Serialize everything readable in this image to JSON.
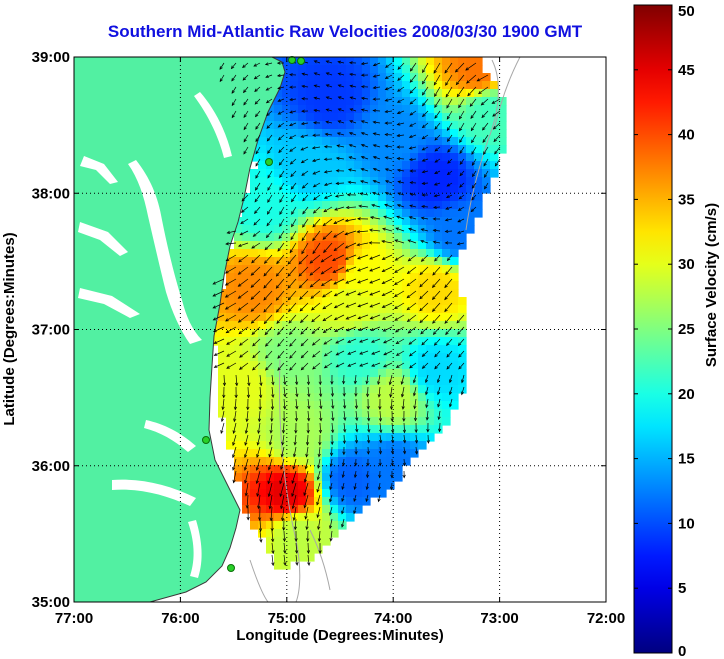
{
  "chart_data": {
    "type": "heatmap",
    "title": "Southern Mid-Atlantic Raw Velocities 2008/03/30 1900 GMT",
    "xlabel": "Longitude (Degrees:Minutes)",
    "ylabel": "Latitude (Degrees:Minutes)",
    "colorbar_label": "Surface Velocity (cm/s)",
    "xlim": [
      -77,
      -72
    ],
    "ylim": [
      35,
      39
    ],
    "x_ticks": [
      {
        "value": -77,
        "label": "77:00"
      },
      {
        "value": -76,
        "label": "76:00"
      },
      {
        "value": -75,
        "label": "75:00"
      },
      {
        "value": -74,
        "label": "74:00"
      },
      {
        "value": -73,
        "label": "73:00"
      },
      {
        "value": -72,
        "label": "72:00"
      }
    ],
    "y_ticks": [
      {
        "value": 35,
        "label": "35:00"
      },
      {
        "value": 36,
        "label": "36:00"
      },
      {
        "value": 37,
        "label": "37:00"
      },
      {
        "value": 38,
        "label": "38:00"
      },
      {
        "value": 39,
        "label": "39:00"
      }
    ],
    "colorbar": {
      "min": 0,
      "max": 50,
      "ticks": [
        {
          "value": 0,
          "label": "0"
        },
        {
          "value": 5,
          "label": "5"
        },
        {
          "value": 10,
          "label": "10"
        },
        {
          "value": 15,
          "label": "15"
        },
        {
          "value": 20,
          "label": "20"
        },
        {
          "value": 25,
          "label": "25"
        },
        {
          "value": 30,
          "label": "30"
        },
        {
          "value": 35,
          "label": "35"
        },
        {
          "value": 40,
          "label": "40"
        },
        {
          "value": 45,
          "label": "45"
        },
        {
          "value": 50,
          "label": "50"
        }
      ]
    },
    "grid": "dotted",
    "velocity_hotspots": [
      {
        "lon": -74.6,
        "lat": 37.5,
        "value": 40
      },
      {
        "lon": -75.3,
        "lat": 37.3,
        "value": 37
      },
      {
        "lon": -74.3,
        "lat": 37.4,
        "value": 31
      },
      {
        "lon": -73.6,
        "lat": 37.3,
        "value": 33
      },
      {
        "lon": -74.9,
        "lat": 36.2,
        "value": 27
      },
      {
        "lon": -74.0,
        "lat": 36.5,
        "value": 28
      },
      {
        "lon": -75.0,
        "lat": 35.8,
        "value": 45
      },
      {
        "lon": -73.2,
        "lat": 38.9,
        "value": 38
      },
      {
        "lon": -74.4,
        "lat": 37.2,
        "value": 30
      },
      {
        "lon": -75.0,
        "lat": 36.8,
        "value": 25
      },
      {
        "lon": -73.6,
        "lat": 38.1,
        "value": 8
      },
      {
        "lon": -74.6,
        "lat": 38.7,
        "value": 9
      },
      {
        "lon": -74.0,
        "lat": 38.4,
        "value": 13
      },
      {
        "lon": -73.4,
        "lat": 37.7,
        "value": 12
      },
      {
        "lon": -74.0,
        "lat": 36.0,
        "value": 12
      },
      {
        "lon": -74.4,
        "lat": 35.9,
        "value": 11
      },
      {
        "lon": -74.3,
        "lat": 36.8,
        "value": 21
      },
      {
        "lon": -73.6,
        "lat": 36.7,
        "value": 17
      },
      {
        "lon": -75.4,
        "lat": 36.6,
        "value": 30
      },
      {
        "lon": -74.9,
        "lat": 35.5,
        "value": 28
      },
      {
        "lon": -75.2,
        "lat": 37.9,
        "value": 20
      },
      {
        "lon": -74.8,
        "lat": 38.2,
        "value": 16
      },
      {
        "lon": -73.1,
        "lat": 38.6,
        "value": 22
      }
    ],
    "colors": {
      "land": "#52f0a2",
      "land_outline": "#3a3a3a",
      "grid": "#000000",
      "bathymetry": "#a8a8a8",
      "stations": "#28d028",
      "arrows": "#000000",
      "title": "#1010e0"
    }
  }
}
